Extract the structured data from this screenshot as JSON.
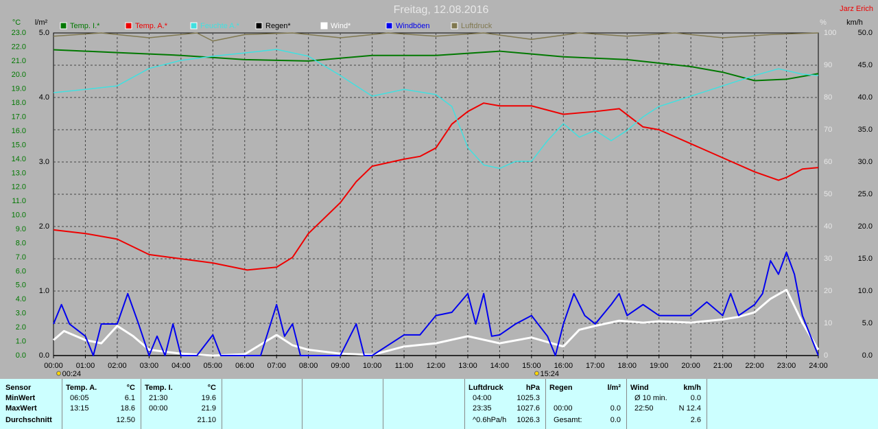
{
  "header": {
    "title": "Freitag, 12.08.2016",
    "user": "Jarz Erich"
  },
  "chart_data": {
    "type": "line",
    "xlim": [
      0,
      24
    ],
    "xticks": [
      {
        "value": 0,
        "label": "00:00"
      },
      {
        "value": 1,
        "label": "01:00"
      },
      {
        "value": 2,
        "label": "02:00"
      },
      {
        "value": 3,
        "label": "03:00"
      },
      {
        "value": 4,
        "label": "04:00"
      },
      {
        "value": 5,
        "label": "05:00"
      },
      {
        "value": 6,
        "label": "06:00"
      },
      {
        "value": 7,
        "label": "07:00"
      },
      {
        "value": 8,
        "label": "08:00"
      },
      {
        "value": 9,
        "label": "09:00"
      },
      {
        "value": 10,
        "label": "10:00"
      },
      {
        "value": 11,
        "label": "11:00"
      },
      {
        "value": 12,
        "label": "12:00"
      },
      {
        "value": 13,
        "label": "13:00"
      },
      {
        "value": 14,
        "label": "14:00"
      },
      {
        "value": 15,
        "label": "15:00"
      },
      {
        "value": 16,
        "label": "16:00"
      },
      {
        "value": 17,
        "label": "17:00"
      },
      {
        "value": 18,
        "label": "18:00"
      },
      {
        "value": 19,
        "label": "19:00"
      },
      {
        "value": 20,
        "label": "20:00"
      },
      {
        "value": 21,
        "label": "21:00"
      },
      {
        "value": 22,
        "label": "22:00"
      },
      {
        "value": 23,
        "label": "23:00"
      },
      {
        "value": 24,
        "label": "24:00"
      }
    ],
    "y_unit": "°C",
    "ylim": [
      0,
      23
    ],
    "yticks": [
      {
        "value": 0,
        "label": "0.0"
      },
      {
        "value": 1,
        "label": "1.0"
      },
      {
        "value": 2,
        "label": "2.0"
      },
      {
        "value": 3,
        "label": "3.0"
      },
      {
        "value": 4,
        "label": "4.0"
      },
      {
        "value": 5,
        "label": "5.0"
      },
      {
        "value": 6,
        "label": "6.0"
      },
      {
        "value": 7,
        "label": "7.0"
      },
      {
        "value": 8,
        "label": "8.0"
      },
      {
        "value": 9,
        "label": "9.0"
      },
      {
        "value": 10,
        "label": "10.0"
      },
      {
        "value": 11,
        "label": "11.0"
      },
      {
        "value": 12,
        "label": "12.0"
      },
      {
        "value": 13,
        "label": "13.0"
      },
      {
        "value": 14,
        "label": "14.0"
      },
      {
        "value": 15,
        "label": "15.0"
      },
      {
        "value": 16,
        "label": "16.0"
      },
      {
        "value": 17,
        "label": "17.0"
      },
      {
        "value": 18,
        "label": "18.0"
      },
      {
        "value": 19,
        "label": "19.0"
      },
      {
        "value": 20,
        "label": "20.0"
      },
      {
        "value": 21,
        "label": "21.0"
      },
      {
        "value": 22,
        "label": "22.0"
      },
      {
        "value": 23,
        "label": "23.0"
      }
    ],
    "y2_unit": "l/m²",
    "y2lim": [
      0,
      5
    ],
    "y2ticks": [
      {
        "value": 0,
        "label": "0.0"
      },
      {
        "value": 1,
        "label": "1.0"
      },
      {
        "value": 2,
        "label": "2.0"
      },
      {
        "value": 3,
        "label": "3.0"
      },
      {
        "value": 4,
        "label": "4.0"
      },
      {
        "value": 5,
        "label": "5.0"
      }
    ],
    "y3_unit": "%",
    "y3lim": [
      0,
      100
    ],
    "y3ticks": [
      0,
      10,
      20,
      30,
      40,
      50,
      60,
      70,
      80,
      90,
      100
    ],
    "y4_unit": "km/h",
    "y4lim": [
      0,
      50
    ],
    "y4ticks": [
      {
        "value": 0,
        "label": "0.0"
      },
      {
        "value": 5,
        "label": "5.0"
      },
      {
        "value": 10,
        "label": "10.0"
      },
      {
        "value": 15,
        "label": "15.0"
      },
      {
        "value": 20,
        "label": "20.0"
      },
      {
        "value": 25,
        "label": "25.0"
      },
      {
        "value": 30,
        "label": "30.0"
      },
      {
        "value": 35,
        "label": "35.0"
      },
      {
        "value": 40,
        "label": "40.0"
      },
      {
        "value": 45,
        "label": "45.0"
      },
      {
        "value": 50,
        "label": "50.0"
      }
    ],
    "grid": true,
    "annotations": [
      {
        "x": 0.4,
        "label": "00:24"
      },
      {
        "x": 15.4,
        "label": "15:24"
      }
    ],
    "series": [
      {
        "name": "Temp. I.*",
        "color": "#007800",
        "axis": "y",
        "width": 2,
        "x": [
          0,
          2,
          4,
          6,
          8,
          10,
          12,
          14,
          16,
          18,
          20,
          21,
          22,
          23,
          24
        ],
        "values": [
          21.8,
          21.6,
          21.4,
          21.1,
          21.0,
          21.4,
          21.4,
          21.7,
          21.3,
          21.1,
          20.6,
          20.2,
          19.6,
          19.7,
          20.1
        ]
      },
      {
        "name": "Temp. A.*",
        "color": "#ee0000",
        "axis": "y",
        "width": 2,
        "x": [
          0,
          1,
          2,
          3,
          4,
          5,
          6.08,
          7,
          7.5,
          8,
          9,
          9.5,
          10,
          11,
          11.5,
          12,
          12.5,
          13,
          13.5,
          14,
          15,
          16,
          17,
          17.75,
          18.5,
          19,
          20,
          21,
          22,
          22.75,
          23,
          23.5,
          24
        ],
        "values": [
          8.96,
          8.7,
          8.3,
          7.2,
          6.9,
          6.6,
          6.1,
          6.3,
          7.0,
          8.7,
          10.9,
          12.4,
          13.5,
          14.0,
          14.2,
          14.8,
          16.5,
          17.4,
          18.0,
          17.8,
          17.8,
          17.2,
          17.4,
          17.6,
          16.3,
          16.1,
          15.1,
          14.1,
          13.1,
          12.5,
          12.7,
          13.3,
          13.4
        ]
      },
      {
        "name": "Feuchte A.*",
        "color": "#40e0e0",
        "axis": "y3",
        "width": 1.5,
        "x": [
          0,
          1,
          2,
          3,
          4,
          5,
          6,
          7,
          8,
          9,
          10,
          11,
          12,
          12.5,
          13,
          13.5,
          14,
          14.5,
          15,
          15.5,
          16,
          16.5,
          17,
          17.5,
          18,
          18.5,
          19,
          20,
          21,
          22,
          22.75,
          23.5,
          24
        ],
        "values": [
          81.5,
          82.5,
          83.6,
          89,
          91.5,
          92.8,
          93.8,
          94.9,
          92.8,
          86.8,
          80.4,
          82.5,
          80.9,
          77.2,
          64.5,
          59.1,
          58,
          60.2,
          60.2,
          66.6,
          71.9,
          67.7,
          69.8,
          66.6,
          69.8,
          74,
          77.2,
          80.4,
          83.6,
          86.8,
          88.9,
          87.2,
          86.8
        ]
      },
      {
        "name": "Regen*",
        "color": "#000000",
        "axis": "y2",
        "width": 1.5,
        "x": [
          0,
          24
        ],
        "values": [
          0,
          0
        ]
      },
      {
        "name": "Wind*",
        "color": "#ffffff",
        "axis": "y4",
        "width": 3,
        "x": [
          0,
          0.33,
          1,
          1.5,
          2,
          2.5,
          3,
          4,
          5,
          6,
          7,
          7.5,
          8,
          9,
          10,
          11,
          12,
          13,
          14,
          15,
          15.5,
          16,
          16.5,
          17,
          17.75,
          18.5,
          19,
          20,
          21,
          21.5,
          22,
          22.5,
          23,
          23.5,
          24
        ],
        "values": [
          2.4,
          3.8,
          2.4,
          1.9,
          4.6,
          3.0,
          0.9,
          0.3,
          0,
          0.2,
          3.2,
          1.6,
          0.9,
          0.3,
          0.1,
          1.4,
          1.9,
          3.0,
          1.9,
          2.8,
          2.1,
          1.4,
          4.0,
          4.6,
          5.4,
          5.1,
          5.3,
          5.1,
          5.6,
          6.0,
          6.7,
          8.8,
          10.2,
          5.1,
          0.9
        ]
      },
      {
        "name": "Windböen",
        "color": "#0000ee",
        "axis": "y4",
        "width": 2,
        "x": [
          0,
          0.25,
          0.5,
          1,
          1.25,
          1.5,
          2,
          2.33,
          2.67,
          3,
          3.25,
          3.5,
          3.75,
          4,
          4.5,
          5,
          5.25,
          5.5,
          6,
          6.5,
          7,
          7.25,
          7.5,
          7.75,
          8,
          9,
          9.5,
          9.75,
          10,
          11,
          11.5,
          12,
          12.5,
          13,
          13.25,
          13.5,
          13.75,
          14,
          14.5,
          15,
          15.5,
          15.75,
          16,
          16.33,
          16.67,
          17,
          17.5,
          17.75,
          18,
          18.5,
          19,
          19.5,
          20,
          20.5,
          21,
          21.25,
          21.5,
          22,
          22.25,
          22.5,
          22.75,
          23,
          23.25,
          23.5,
          24
        ],
        "values": [
          4.9,
          7.9,
          4.9,
          3.0,
          0,
          4.9,
          4.9,
          9.6,
          4.9,
          0,
          3.0,
          0,
          4.9,
          0,
          0,
          3.2,
          0,
          0,
          0,
          0,
          7.9,
          3.0,
          4.9,
          0,
          0,
          0,
          4.9,
          0,
          0,
          3.2,
          3.2,
          6.2,
          6.7,
          9.6,
          4.9,
          9.6,
          3.0,
          3.2,
          4.9,
          6.2,
          3.0,
          0,
          4.9,
          9.6,
          6.2,
          4.9,
          7.9,
          9.6,
          6.2,
          7.9,
          6.2,
          6.2,
          6.2,
          8.3,
          6.2,
          9.6,
          6.2,
          7.9,
          9.6,
          14.7,
          12.6,
          16.0,
          12.6,
          6.2,
          0
        ]
      },
      {
        "name": "Luftdruck",
        "color": "#807850",
        "axis": "y3",
        "width": 1.5,
        "x": [
          0,
          1.5,
          3,
          4.5,
          5,
          6,
          7.5,
          9,
          10.5,
          12,
          13.5,
          15,
          16.5,
          18,
          19.5,
          21,
          22.5,
          24
        ],
        "values": [
          99,
          100,
          98.5,
          100,
          97.5,
          99.5,
          100,
          98.5,
          100,
          99,
          100,
          98,
          100,
          99,
          100,
          98.5,
          99.5,
          100
        ]
      }
    ]
  },
  "stats": {
    "row_labels": [
      "Sensor",
      "MinWert",
      "MaxWert",
      "Durchschnitt"
    ],
    "blocks": [
      {
        "header": [
          "Temp. A.",
          "°C"
        ],
        "rows": [
          [
            "06:05",
            "6.1"
          ],
          [
            "13:15",
            "18.6"
          ],
          [
            null,
            "12.50"
          ]
        ]
      },
      {
        "header": [
          "Temp. I.",
          "°C"
        ],
        "rows": [
          [
            "21:30",
            "19.6"
          ],
          [
            "00:00",
            "21.9"
          ],
          [
            null,
            "21.10"
          ]
        ]
      },
      {
        "header": [
          "Luftdruck",
          "hPa"
        ],
        "rows": [
          [
            "04:00",
            "1025.3"
          ],
          [
            "23:35",
            "1027.6"
          ],
          [
            "^0.6hPa/h",
            "1026.3"
          ]
        ]
      },
      {
        "header": [
          "Regen",
          "l/m²"
        ],
        "rows": [
          [
            null,
            null
          ],
          [
            "00:00",
            "0.0"
          ],
          [
            "Gesamt:",
            "0.0"
          ]
        ]
      },
      {
        "header": [
          "Wind",
          "km/h"
        ],
        "rows": [
          [
            "Ø 10 min.",
            "0.0"
          ],
          [
            "22:50",
            "N 12.4"
          ],
          [
            null,
            "2.6"
          ]
        ]
      }
    ]
  }
}
